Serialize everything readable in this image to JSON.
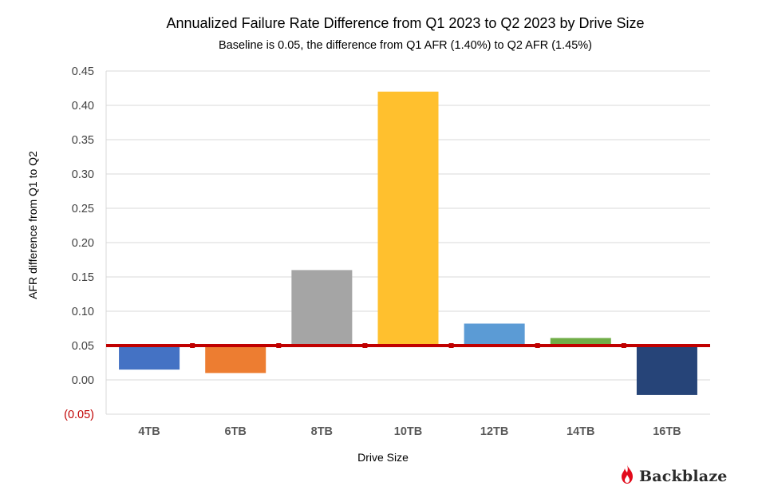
{
  "chart_data": {
    "type": "bar",
    "title": "Annualized Failure Rate Difference from Q1 2023 to Q2 2023 by Drive Size",
    "subtitle": "Baseline is 0.05, the difference from Q1 AFR (1.40%) to Q2 AFR (1.45%)",
    "xlabel": "Drive Size",
    "ylabel": "AFR difference from Q1 to Q2",
    "categories": [
      "4TB",
      "6TB",
      "8TB",
      "10TB",
      "12TB",
      "14TB",
      "16TB"
    ],
    "values": [
      0.015,
      0.01,
      0.16,
      0.42,
      0.082,
      0.061,
      -0.022
    ],
    "colors": [
      "#4472c4",
      "#ed7d31",
      "#a5a5a5",
      "#ffc02e",
      "#5b9bd5",
      "#70ad47",
      "#264478"
    ],
    "baseline": 0.05,
    "baseline_color": "#c00000",
    "ylim": [
      -0.05,
      0.45
    ],
    "yticks": [
      -0.05,
      0.0,
      0.05,
      0.1,
      0.15,
      0.2,
      0.25,
      0.3,
      0.35,
      0.4,
      0.45
    ],
    "ytick_labels": [
      "(0.05)",
      "0.00",
      "0.05",
      "0.10",
      "0.15",
      "0.20",
      "0.25",
      "0.30",
      "0.35",
      "0.40",
      "0.45"
    ],
    "negative_tick_color": "#c00000",
    "grid": true
  },
  "brand": {
    "logo_text": "Backblaze",
    "logo_icon": "flame-icon",
    "logo_color": "#e20b1b"
  }
}
